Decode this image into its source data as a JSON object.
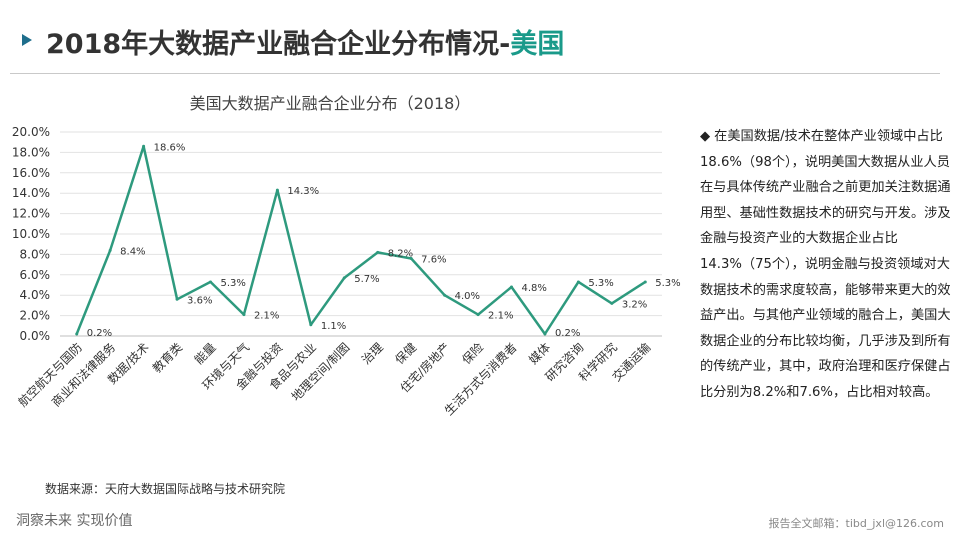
{
  "page_title": {
    "main": "2018年大数据产业融合企业分布情况-",
    "accent": "美国"
  },
  "chart_data": {
    "type": "line",
    "title": "美国大数据产业融合企业分布（2018）",
    "categories": [
      "航空航天与国防",
      "商业和法律服务",
      "数据/技术",
      "教育类",
      "能量",
      "环境与天气",
      "金融与投资",
      "食品与农业",
      "地理空间/制图",
      "治理",
      "保健",
      "住宅/房地产",
      "保险",
      "生活方式与消费者",
      "媒体",
      "研究咨询",
      "科学研究",
      "交通运输"
    ],
    "values": [
      0.2,
      8.4,
      18.6,
      3.6,
      5.3,
      2.1,
      14.3,
      1.1,
      5.7,
      8.2,
      7.6,
      4.0,
      2.1,
      4.8,
      0.2,
      5.3,
      3.2,
      5.3
    ],
    "labels": [
      "0.2%",
      "8.4%",
      "18.6%",
      "3.6%",
      "5.3%",
      "2.1%",
      "14.3%",
      "1.1%",
      "5.7%",
      "8.2%",
      "7.6%",
      "4.0%",
      "2.1%",
      "4.8%",
      "0.2%",
      "5.3%",
      "3.2%",
      "5.3%"
    ],
    "y_ticks": [
      "0.0%",
      "2.0%",
      "4.0%",
      "6.0%",
      "8.0%",
      "10.0%",
      "12.0%",
      "14.0%",
      "16.0%",
      "18.0%",
      "20.0%"
    ],
    "ylim": [
      0,
      20
    ],
    "grid": true,
    "color": "#2e9a7e"
  },
  "source": "数据来源：天府大数据国际战略与技术研究院",
  "note": {
    "bullet": "◆",
    "text": "在美国数据/技术在整体产业领域中占比18.6%（98个），说明美国大数据从业人员在与具体传统产业融合之前更加关注数据通用型、基础性数据技术的研究与开发。涉及金融与投资产业的大数据企业占比14.3%（75个），说明金融与投资领域对大数据技术的需求度较高，能够带来更大的效益产出。与其他产业领域的融合上，美国大数据企业的分布比较均衡，几乎涉及到所有的传统产业，其中，政府治理和医疗保健占比分别为8.2%和7.6%，占比相对较高。"
  },
  "footer": {
    "left": "洞察未来 实现价值",
    "right": "报告全文邮箱：tibd_jxl@126.com"
  }
}
